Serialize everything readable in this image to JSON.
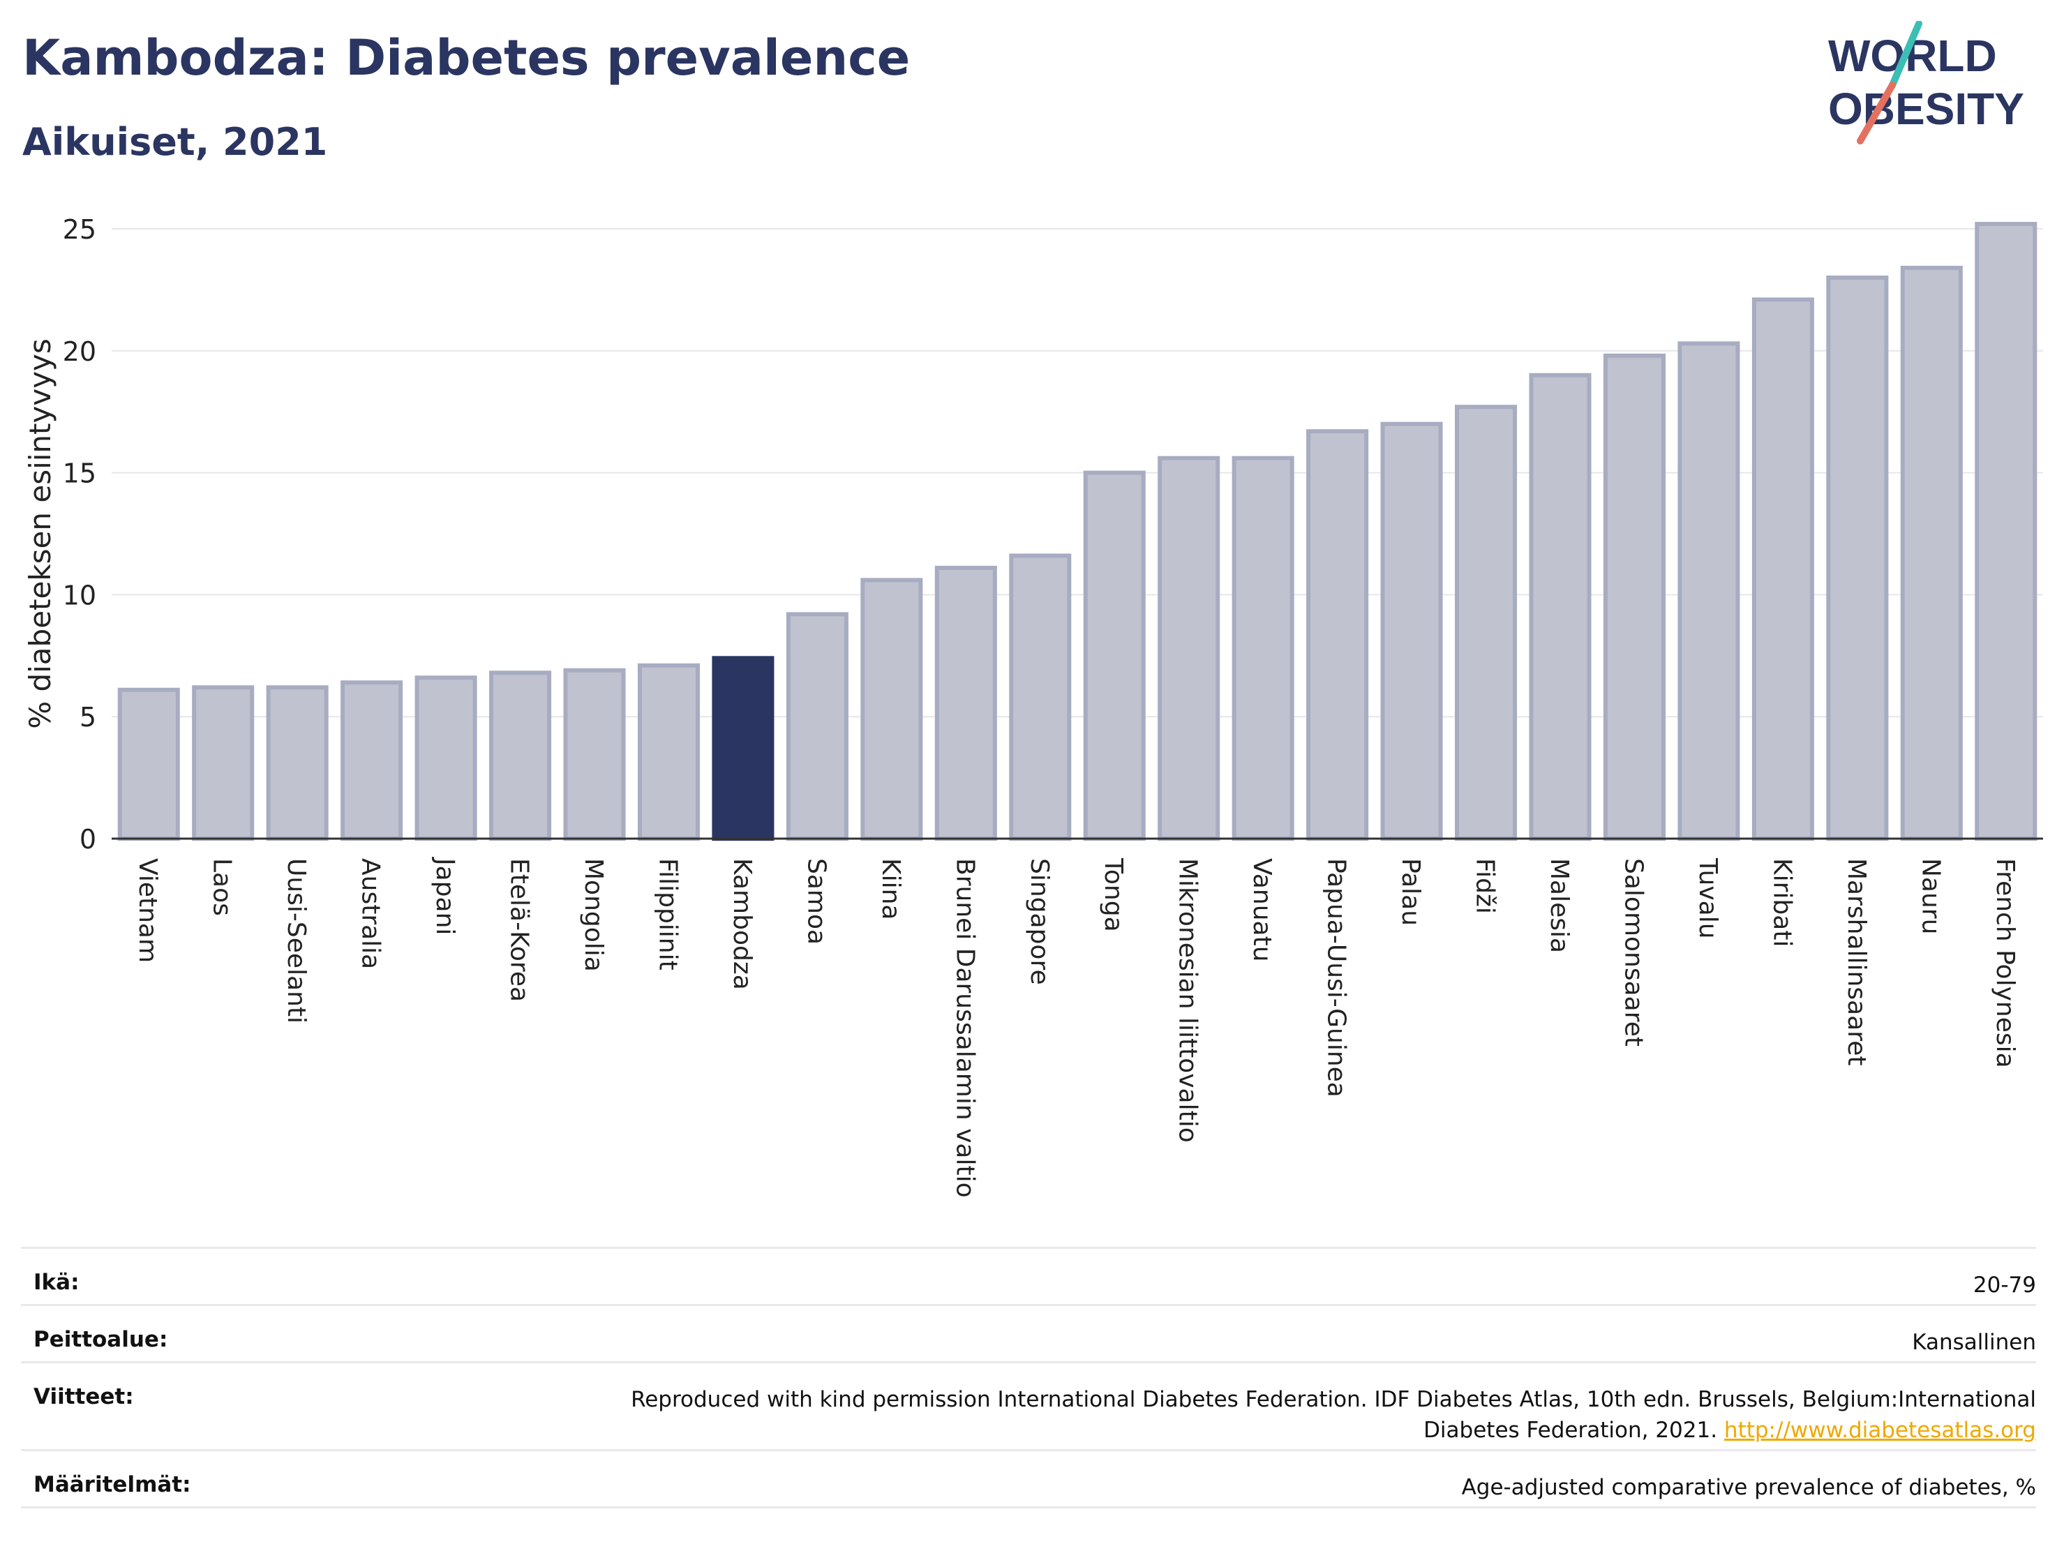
{
  "header": {
    "title": "Kambodza: Diabetes prevalence",
    "subtitle": "Aikuiset, 2021",
    "logo_line1": "WORLD",
    "logo_line2": "OBESITY"
  },
  "colors": {
    "bar_default": "#c0c3cf",
    "bar_default_border": "#a7acc1",
    "bar_highlight": "#2b3561",
    "axis_text": "#222222",
    "title": "#2b3561",
    "grid": "#e6e6ec"
  },
  "chart_data": {
    "type": "bar",
    "title": "Kambodza: Diabetes prevalence",
    "subtitle": "Aikuiset, 2021",
    "ylabel": "% diabeteksen esiintyvyys",
    "xlabel": "",
    "ylim": [
      0,
      25
    ],
    "yticks": [
      0,
      5,
      10,
      15,
      20,
      25
    ],
    "grid": true,
    "highlight": "Kambodza",
    "categories": [
      "Vietnam",
      "Laos",
      "Uusi-Seelanti",
      "Australia",
      "Japani",
      "Etelä-Korea",
      "Mongolia",
      "Filippiinit",
      "Kambodza",
      "Samoa",
      "Kiina",
      "Brunei Darussalamin valtio",
      "Singapore",
      "Tonga",
      "Mikronesian liittovaltio",
      "Vanuatu",
      "Papua-Uusi-Guinea",
      "Palau",
      "Fidži",
      "Malesia",
      "Salomonsaaret",
      "Tuvalu",
      "Kiribati",
      "Marshallinsaaret",
      "Nauru",
      "French Polynesia"
    ],
    "values": [
      6.1,
      6.2,
      6.2,
      6.4,
      6.6,
      6.8,
      6.9,
      7.1,
      7.4,
      9.2,
      10.6,
      11.1,
      11.6,
      15.0,
      15.6,
      15.6,
      16.7,
      17.0,
      17.7,
      19.0,
      19.8,
      20.3,
      22.1,
      23.0,
      23.4,
      25.2
    ]
  },
  "meta": [
    {
      "key": "Ikä:",
      "value": "20-79"
    },
    {
      "key": "Peittoalue:",
      "value": "Kansallinen"
    },
    {
      "key": "Viitteet:",
      "value": "Reproduced with kind permission International Diabetes Federation.  IDF Diabetes Atlas, 10th edn. Brussels, Belgium:International Diabetes Federation, 2021.",
      "link": "http://www.diabetesatlas.org"
    },
    {
      "key": "Määritelmät:",
      "value": "Age-adjusted comparative prevalence of diabetes, %"
    }
  ]
}
